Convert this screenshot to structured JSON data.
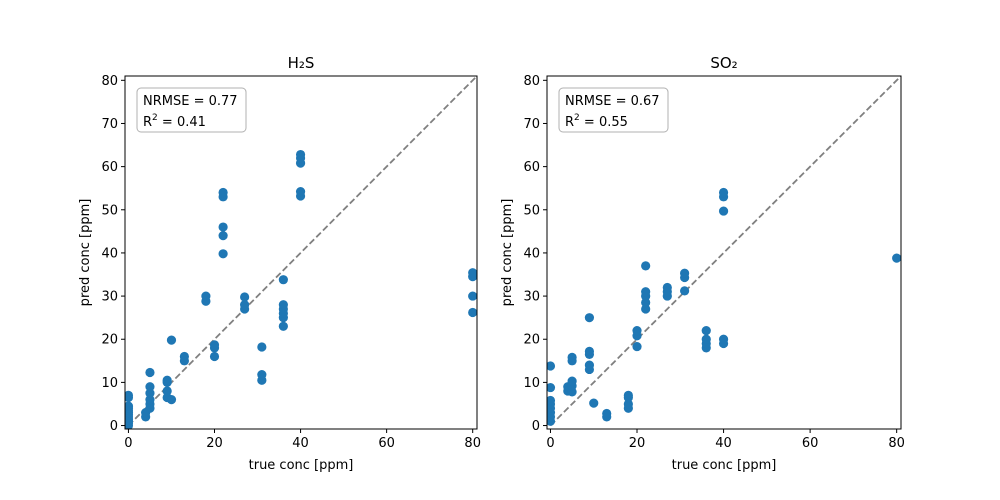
{
  "chart_data": [
    {
      "type": "scatter",
      "title": "H₂S",
      "xlabel": "true conc [ppm]",
      "ylabel": "pred conc [ppm]",
      "xlim": [
        -0.8,
        81
      ],
      "ylim": [
        -0.8,
        81
      ],
      "xticks": [
        0,
        20,
        40,
        60,
        80
      ],
      "yticks": [
        0,
        10,
        20,
        30,
        40,
        50,
        60,
        70,
        80
      ],
      "grid": false,
      "reference_line": {
        "from": [
          0,
          0
        ],
        "to": [
          81,
          81
        ],
        "style": "dashed",
        "color": "#808080"
      },
      "annotation": {
        "line1": "NRMSE = 0.77",
        "r2_label": "R",
        "r2_sup": "2",
        "r2_value": " = 0.41"
      },
      "marker_color": "#1f77b4",
      "points": [
        [
          0,
          0
        ],
        [
          0,
          0.5
        ],
        [
          0,
          1
        ],
        [
          0,
          1.5
        ],
        [
          0,
          2
        ],
        [
          0,
          2.5
        ],
        [
          0,
          3
        ],
        [
          0,
          3.5
        ],
        [
          0,
          4
        ],
        [
          0,
          4.5
        ],
        [
          0,
          6.5
        ],
        [
          0,
          7
        ],
        [
          4,
          2
        ],
        [
          4,
          3
        ],
        [
          5,
          4
        ],
        [
          5,
          5
        ],
        [
          5,
          6
        ],
        [
          5,
          7.5
        ],
        [
          5,
          9
        ],
        [
          5,
          12.3
        ],
        [
          9,
          6.5
        ],
        [
          9,
          8
        ],
        [
          9,
          10
        ],
        [
          9,
          10.5
        ],
        [
          10,
          6
        ],
        [
          10,
          19.8
        ],
        [
          13,
          15
        ],
        [
          13,
          16
        ],
        [
          18,
          28.8
        ],
        [
          18,
          30
        ],
        [
          20,
          16
        ],
        [
          20,
          18
        ],
        [
          20,
          18.7
        ],
        [
          22,
          39.8
        ],
        [
          22,
          44
        ],
        [
          22,
          46
        ],
        [
          22,
          53
        ],
        [
          22,
          54
        ],
        [
          27,
          27
        ],
        [
          27,
          28
        ],
        [
          27,
          29.8
        ],
        [
          31,
          10.5
        ],
        [
          31,
          11.8
        ],
        [
          31,
          18.2
        ],
        [
          36,
          23
        ],
        [
          36,
          25
        ],
        [
          36,
          26
        ],
        [
          36,
          27
        ],
        [
          36,
          28
        ],
        [
          36,
          33.8
        ],
        [
          40,
          53.2
        ],
        [
          40,
          54.2
        ],
        [
          40,
          60.8
        ],
        [
          40,
          62
        ],
        [
          40,
          62.8
        ],
        [
          80,
          26.2
        ],
        [
          80,
          30
        ],
        [
          80,
          34.5
        ],
        [
          80,
          35.4
        ]
      ]
    },
    {
      "type": "scatter",
      "title": "SO₂",
      "xlabel": "true conc [ppm]",
      "ylabel": "pred conc [ppm]",
      "xlim": [
        -0.8,
        81
      ],
      "ylim": [
        -0.8,
        81
      ],
      "xticks": [
        0,
        20,
        40,
        60,
        80
      ],
      "yticks": [
        0,
        10,
        20,
        30,
        40,
        50,
        60,
        70,
        80
      ],
      "grid": false,
      "reference_line": {
        "from": [
          0,
          0
        ],
        "to": [
          81,
          81
        ],
        "style": "dashed",
        "color": "#808080"
      },
      "annotation": {
        "line1": "NRMSE = 0.67",
        "r2_label": "R",
        "r2_sup": "2",
        "r2_value": " = 0.55"
      },
      "marker_color": "#1f77b4",
      "points": [
        [
          0,
          1
        ],
        [
          0,
          2
        ],
        [
          0,
          3
        ],
        [
          0,
          4
        ],
        [
          0,
          5
        ],
        [
          0,
          5.8
        ],
        [
          0,
          8.8
        ],
        [
          0,
          13.8
        ],
        [
          4,
          8
        ],
        [
          4,
          9
        ],
        [
          5,
          7.8
        ],
        [
          5,
          9.2
        ],
        [
          5,
          10.3
        ],
        [
          5,
          15
        ],
        [
          5,
          15.8
        ],
        [
          9,
          13
        ],
        [
          9,
          14
        ],
        [
          9,
          16.5
        ],
        [
          9,
          17.2
        ],
        [
          9,
          25
        ],
        [
          10,
          5.2
        ],
        [
          13,
          2
        ],
        [
          13,
          2.8
        ],
        [
          18,
          4
        ],
        [
          18,
          5
        ],
        [
          18,
          6.5
        ],
        [
          18,
          7
        ],
        [
          20,
          18.3
        ],
        [
          20,
          20.8
        ],
        [
          20,
          22
        ],
        [
          22,
          27
        ],
        [
          22,
          28.5
        ],
        [
          22,
          30
        ],
        [
          22,
          31
        ],
        [
          22,
          37
        ],
        [
          27,
          30
        ],
        [
          27,
          31
        ],
        [
          27,
          32
        ],
        [
          31,
          31.2
        ],
        [
          31,
          34.3
        ],
        [
          31,
          35.3
        ],
        [
          36,
          18
        ],
        [
          36,
          19
        ],
        [
          36,
          20
        ],
        [
          36,
          22
        ],
        [
          40,
          19
        ],
        [
          40,
          20
        ],
        [
          40,
          49.7
        ],
        [
          40,
          53
        ],
        [
          40,
          54
        ],
        [
          80,
          38.8
        ]
      ]
    }
  ]
}
